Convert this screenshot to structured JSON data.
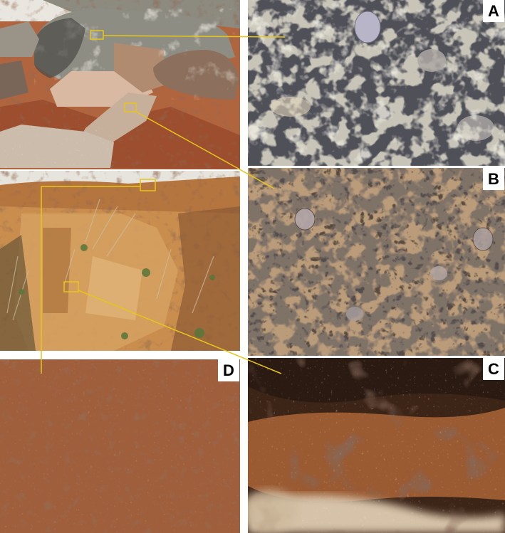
{
  "panels": {
    "a": {
      "label": "A",
      "depicts": "granite-closeup"
    },
    "b": {
      "label": "B",
      "depicts": "weathered-granite-closeup"
    },
    "c": {
      "label": "C",
      "depicts": "saprolite-closeup"
    },
    "d": {
      "label": "D",
      "depicts": "soil-closeup"
    }
  },
  "colors": {
    "callout_line": "#e6c619",
    "label_background": "#ffffff",
    "label_text": "#000000"
  }
}
